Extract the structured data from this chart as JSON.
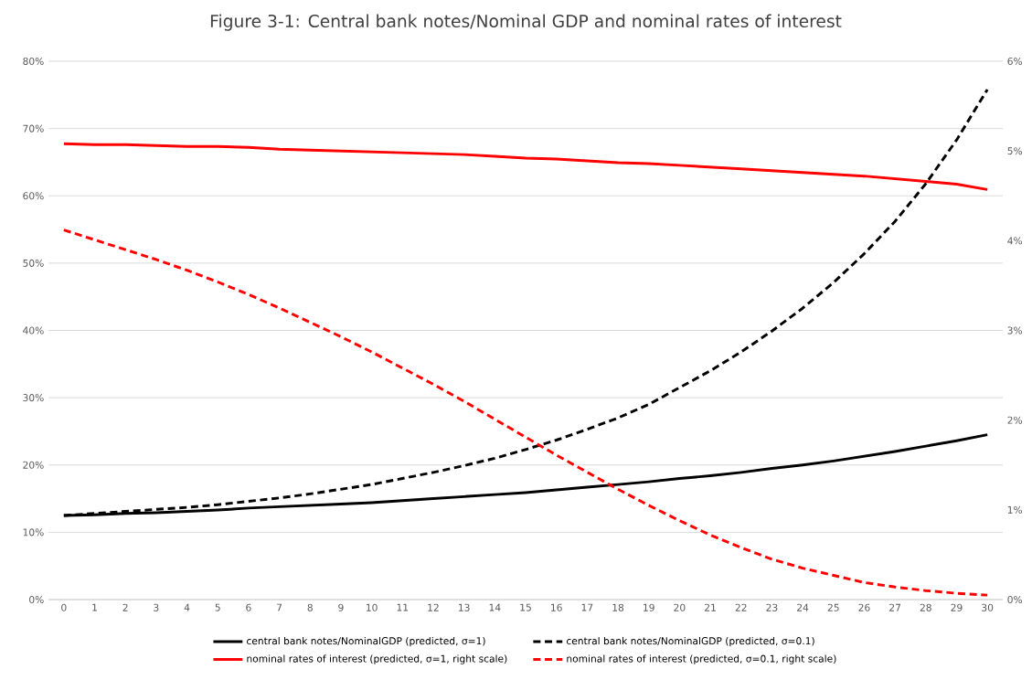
{
  "chart_data": {
    "type": "line",
    "title": "Figure 3-1: Central bank notes/Nominal GDP and nominal rates of interest",
    "categories": [
      "0",
      "1",
      "2",
      "3",
      "4",
      "5",
      "6",
      "7",
      "8",
      "9",
      "10",
      "11",
      "12",
      "13",
      "14",
      "15",
      "16",
      "17",
      "18",
      "19",
      "20",
      "21",
      "22",
      "23",
      "24",
      "25",
      "26",
      "27",
      "28",
      "29",
      "30"
    ],
    "series": [
      {
        "name": "central bank notes/NominalGDP (predicted, σ=1)",
        "color": "#000000",
        "line_style": "solid",
        "values": [
          12.5,
          12.6,
          12.8,
          12.9,
          13.1,
          13.3,
          13.6,
          13.8,
          14.0,
          14.2,
          14.4,
          14.7,
          15.0,
          15.3,
          15.6,
          15.9,
          16.3,
          16.7,
          17.1,
          17.5,
          18.0,
          18.4,
          18.9,
          19.5,
          20.0,
          20.6,
          21.3,
          22.0,
          22.8,
          23.6,
          24.5
        ]
      },
      {
        "name": "central bank notes/NominalGDP (predicted, σ=0.1)",
        "color": "#000000",
        "line_style": "dashed",
        "values": [
          12.5,
          12.8,
          13.1,
          13.4,
          13.7,
          14.1,
          14.6,
          15.1,
          15.7,
          16.4,
          17.1,
          18.0,
          18.9,
          19.9,
          21.0,
          22.3,
          23.7,
          25.3,
          27.0,
          29.0,
          31.5,
          34.0,
          36.8,
          39.9,
          43.3,
          47.1,
          51.4,
          56.2,
          61.8,
          68.3,
          75.8
        ]
      },
      {
        "name": "nominal rates of interest (predicted, σ=1, right scale)",
        "color": "#ff0000",
        "line_style": "solid",
        "axis": "y2",
        "values": [
          5.08,
          5.07,
          5.07,
          5.06,
          5.05,
          5.05,
          5.04,
          5.02,
          5.01,
          5.0,
          4.99,
          4.98,
          4.97,
          4.96,
          4.94,
          4.92,
          4.91,
          4.89,
          4.87,
          4.86,
          4.84,
          4.82,
          4.8,
          4.78,
          4.76,
          4.74,
          4.72,
          4.69,
          4.66,
          4.63,
          4.57
        ]
      },
      {
        "name": "nominal rates of interest (predicted, σ=0.1, right scale)",
        "color": "#ff0000",
        "line_style": "dashed",
        "axis": "y2",
        "values": [
          4.12,
          4.01,
          3.9,
          3.79,
          3.67,
          3.54,
          3.4,
          3.25,
          3.09,
          2.93,
          2.76,
          2.58,
          2.4,
          2.21,
          2.01,
          1.81,
          1.61,
          1.42,
          1.23,
          1.05,
          0.88,
          0.72,
          0.58,
          0.45,
          0.35,
          0.27,
          0.19,
          0.14,
          0.1,
          0.07,
          0.05
        ]
      }
    ],
    "ylim": [
      0,
      80
    ],
    "yticks": [
      {
        "value": 0,
        "label": "0%"
      },
      {
        "value": 10,
        "label": "10%"
      },
      {
        "value": 20,
        "label": "20%"
      },
      {
        "value": 30,
        "label": "30%"
      },
      {
        "value": 40,
        "label": "40%"
      },
      {
        "value": 50,
        "label": "50%"
      },
      {
        "value": 60,
        "label": "60%"
      },
      {
        "value": 70,
        "label": "70%"
      },
      {
        "value": 80,
        "label": "80%"
      }
    ],
    "y2lim": [
      0,
      6
    ],
    "y2ticks": [
      {
        "value": 0,
        "label": "0%"
      },
      {
        "value": 1,
        "label": "1%"
      },
      {
        "value": 2,
        "label": "2%"
      },
      {
        "value": 3,
        "label": "3%"
      },
      {
        "value": 4,
        "label": "4%"
      },
      {
        "value": 5,
        "label": "5%"
      },
      {
        "value": 6,
        "label": "6%"
      }
    ],
    "grid": "y",
    "legend": "bottom",
    "marker": "none"
  }
}
